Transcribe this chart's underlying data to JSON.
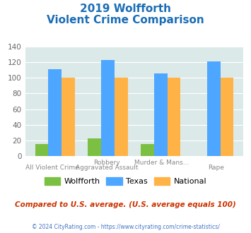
{
  "title_line1": "2019 Wolfforth",
  "title_line2": "Violent Crime Comparison",
  "cat_labels_top": [
    "",
    "Robbery",
    "Murder & Mans...",
    ""
  ],
  "cat_labels_bottom": [
    "All Violent Crime",
    "Aggravated Assault",
    "",
    "Rape"
  ],
  "wolfforth": [
    15,
    23,
    15,
    0
  ],
  "texas": [
    111,
    123,
    106,
    121
  ],
  "national": [
    100,
    100,
    100,
    100
  ],
  "color_wolfforth": "#7bc043",
  "color_texas": "#4da6ff",
  "color_national": "#ffb347",
  "ylim": [
    0,
    140
  ],
  "yticks": [
    0,
    20,
    40,
    60,
    80,
    100,
    120,
    140
  ],
  "background_color": "#dce9e9",
  "title_color": "#1a6db5",
  "note_text": "Compared to U.S. average. (U.S. average equals 100)",
  "note_color": "#cc3300",
  "footer_text": "© 2024 CityRating.com - https://www.cityrating.com/crime-statistics/",
  "footer_color": "#4472c4",
  "label_color": "#888888",
  "bar_width": 0.25,
  "legend_labels": [
    "Wolfforth",
    "Texas",
    "National"
  ]
}
